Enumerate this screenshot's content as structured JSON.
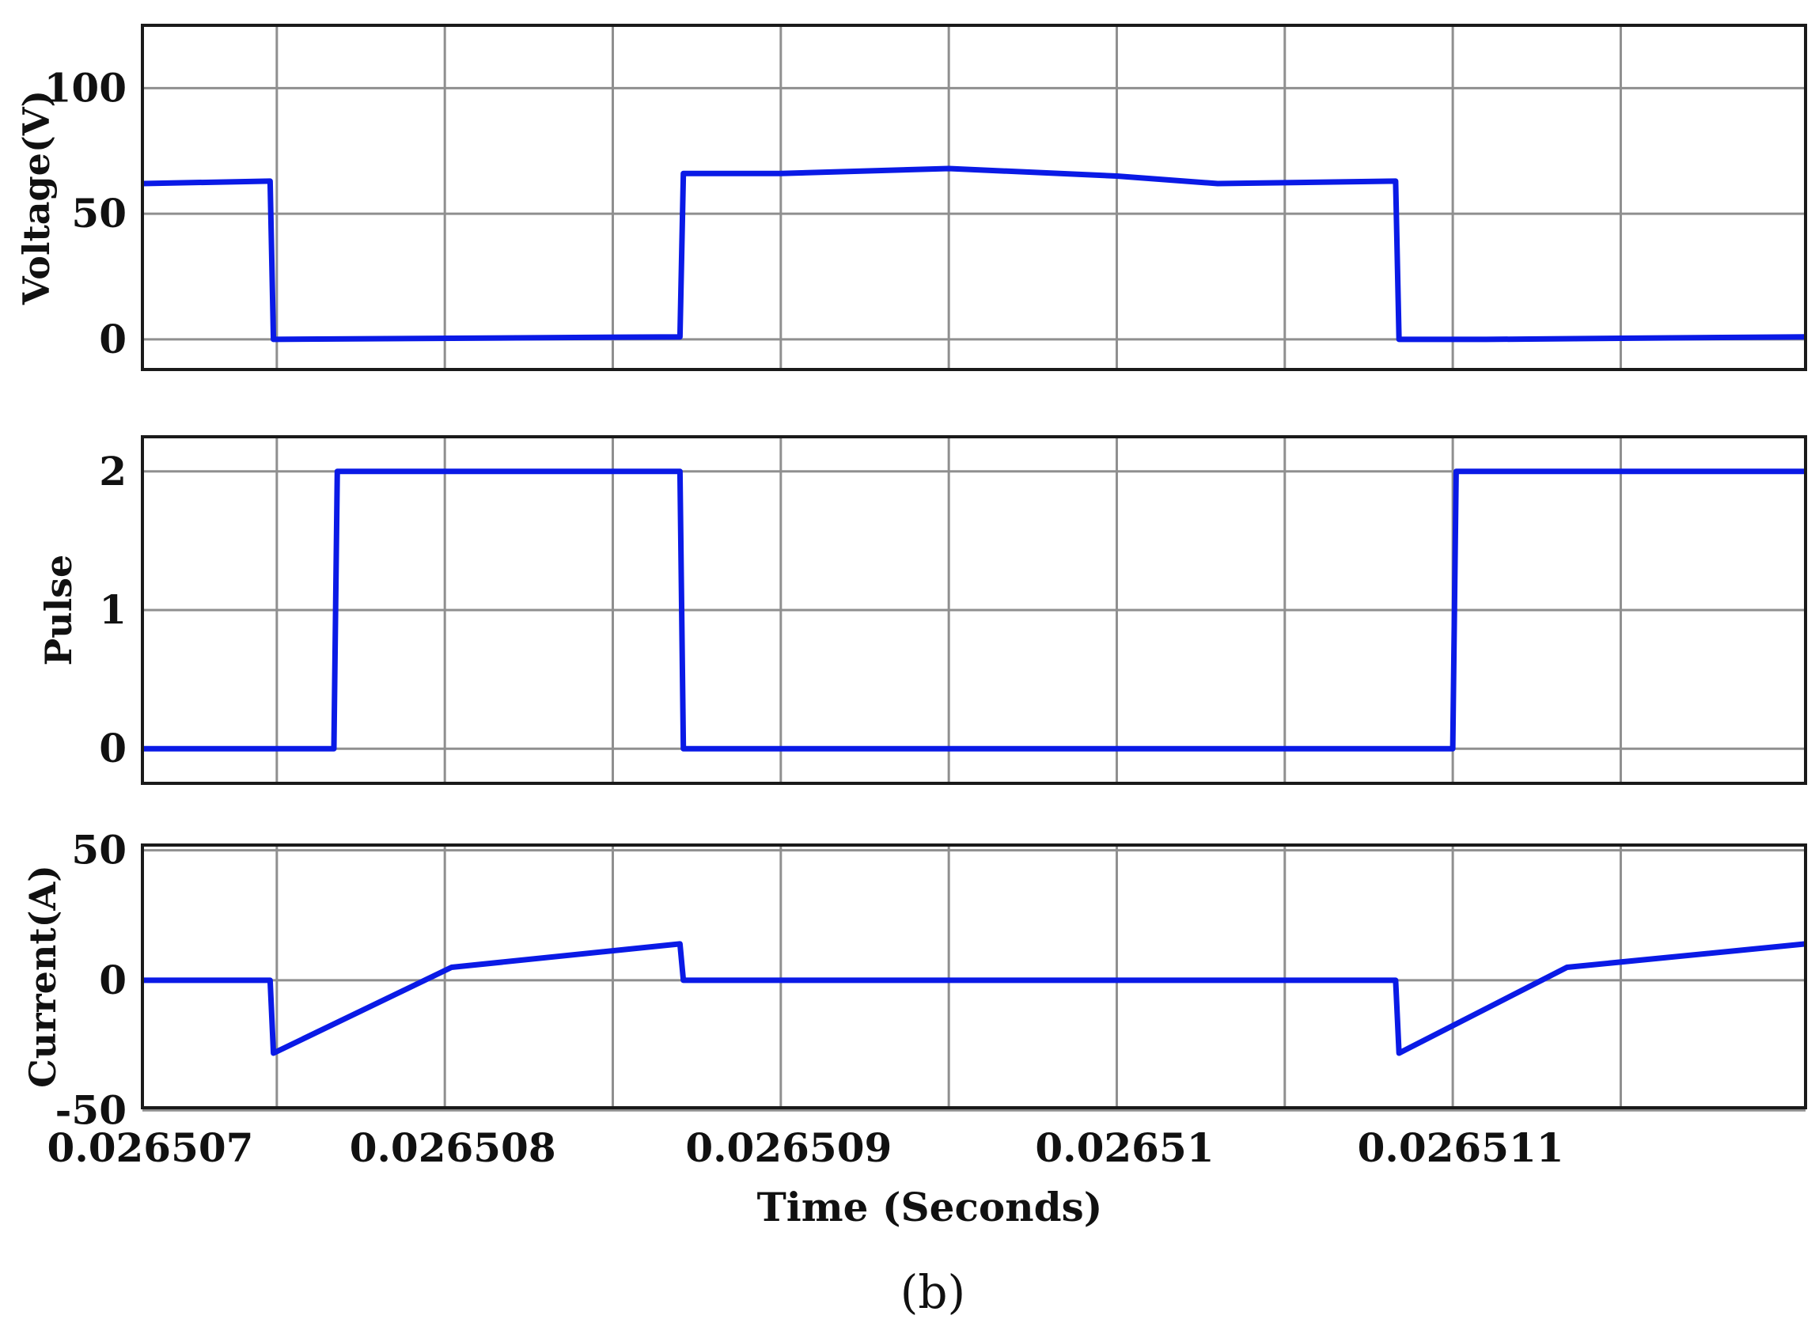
{
  "figure": {
    "caption": "(b)",
    "xlabel": "Time (Seconds)"
  },
  "chart_data": [
    {
      "type": "line",
      "ylabel": "Voltage(V)",
      "xlim": [
        0.0265066,
        0.02651155
      ],
      "ylim": [
        -12,
        125
      ],
      "x_ticks": [
        0.0265066,
        0.026507,
        0.0265075,
        0.026508,
        0.0265085,
        0.026509,
        0.0265095,
        0.02651,
        0.0265105,
        0.026511
      ],
      "y_ticks": [
        0,
        50,
        100
      ],
      "y_tick_labels": [
        "0",
        "50",
        "100"
      ],
      "grid": true,
      "series": [
        {
          "color": "#0a1ae6",
          "x": [
            0.0265066,
            0.02650698,
            0.02650699,
            0.0265082,
            0.02650821,
            0.0265085,
            0.026509,
            0.0265095,
            0.0265098,
            0.02651033,
            0.02651034,
            0.0265106,
            0.02651155
          ],
          "y": [
            62,
            63,
            0,
            1,
            66,
            66,
            68,
            65,
            62,
            63,
            0,
            0,
            1
          ]
        }
      ]
    },
    {
      "type": "line",
      "ylabel": "Pulse",
      "xlim": [
        0.0265066,
        0.02651155
      ],
      "ylim": [
        -0.25,
        2.25
      ],
      "x_ticks": [
        0.0265066,
        0.026507,
        0.0265075,
        0.026508,
        0.0265085,
        0.026509,
        0.0265095,
        0.02651,
        0.0265105,
        0.026511
      ],
      "y_ticks": [
        0,
        1,
        2
      ],
      "y_tick_labels": [
        "0",
        "1",
        "2"
      ],
      "grid": true,
      "series": [
        {
          "color": "#0a1ae6",
          "x": [
            0.0265066,
            0.02650717,
            0.02650718,
            0.0265082,
            0.02650821,
            0.0265105,
            0.02651051,
            0.02651155
          ],
          "y": [
            0,
            0,
            2,
            2,
            0,
            0,
            2,
            2
          ]
        }
      ]
    },
    {
      "type": "line",
      "ylabel": "Current(A)",
      "xlim": [
        0.0265066,
        0.02651155
      ],
      "ylim": [
        -49,
        52
      ],
      "x_ticks": [
        0.0265066,
        0.026507,
        0.0265075,
        0.026508,
        0.0265085,
        0.026509,
        0.0265095,
        0.02651,
        0.0265105,
        0.026511
      ],
      "x_tick_labels": [
        {
          "x": 0.0265066,
          "label": "0.026507"
        },
        {
          "x": 0.0265075,
          "label": "0.026508"
        },
        {
          "x": 0.0265085,
          "label": "0.026509"
        },
        {
          "x": 0.0265095,
          "label": "0.02651"
        },
        {
          "x": 0.0265105,
          "label": "0.026511"
        }
      ],
      "y_ticks": [
        -50,
        0,
        50
      ],
      "y_tick_labels": [
        "-50",
        "0",
        "50"
      ],
      "grid": true,
      "series": [
        {
          "color": "#0a1ae6",
          "x": [
            0.0265066,
            0.02650698,
            0.02650699,
            0.02650752,
            0.0265082,
            0.02650821,
            0.02651033,
            0.02651034,
            0.02651084,
            0.02651155
          ],
          "y": [
            0,
            0,
            -28,
            5,
            14,
            0,
            0,
            -28,
            5,
            14
          ]
        }
      ]
    }
  ]
}
